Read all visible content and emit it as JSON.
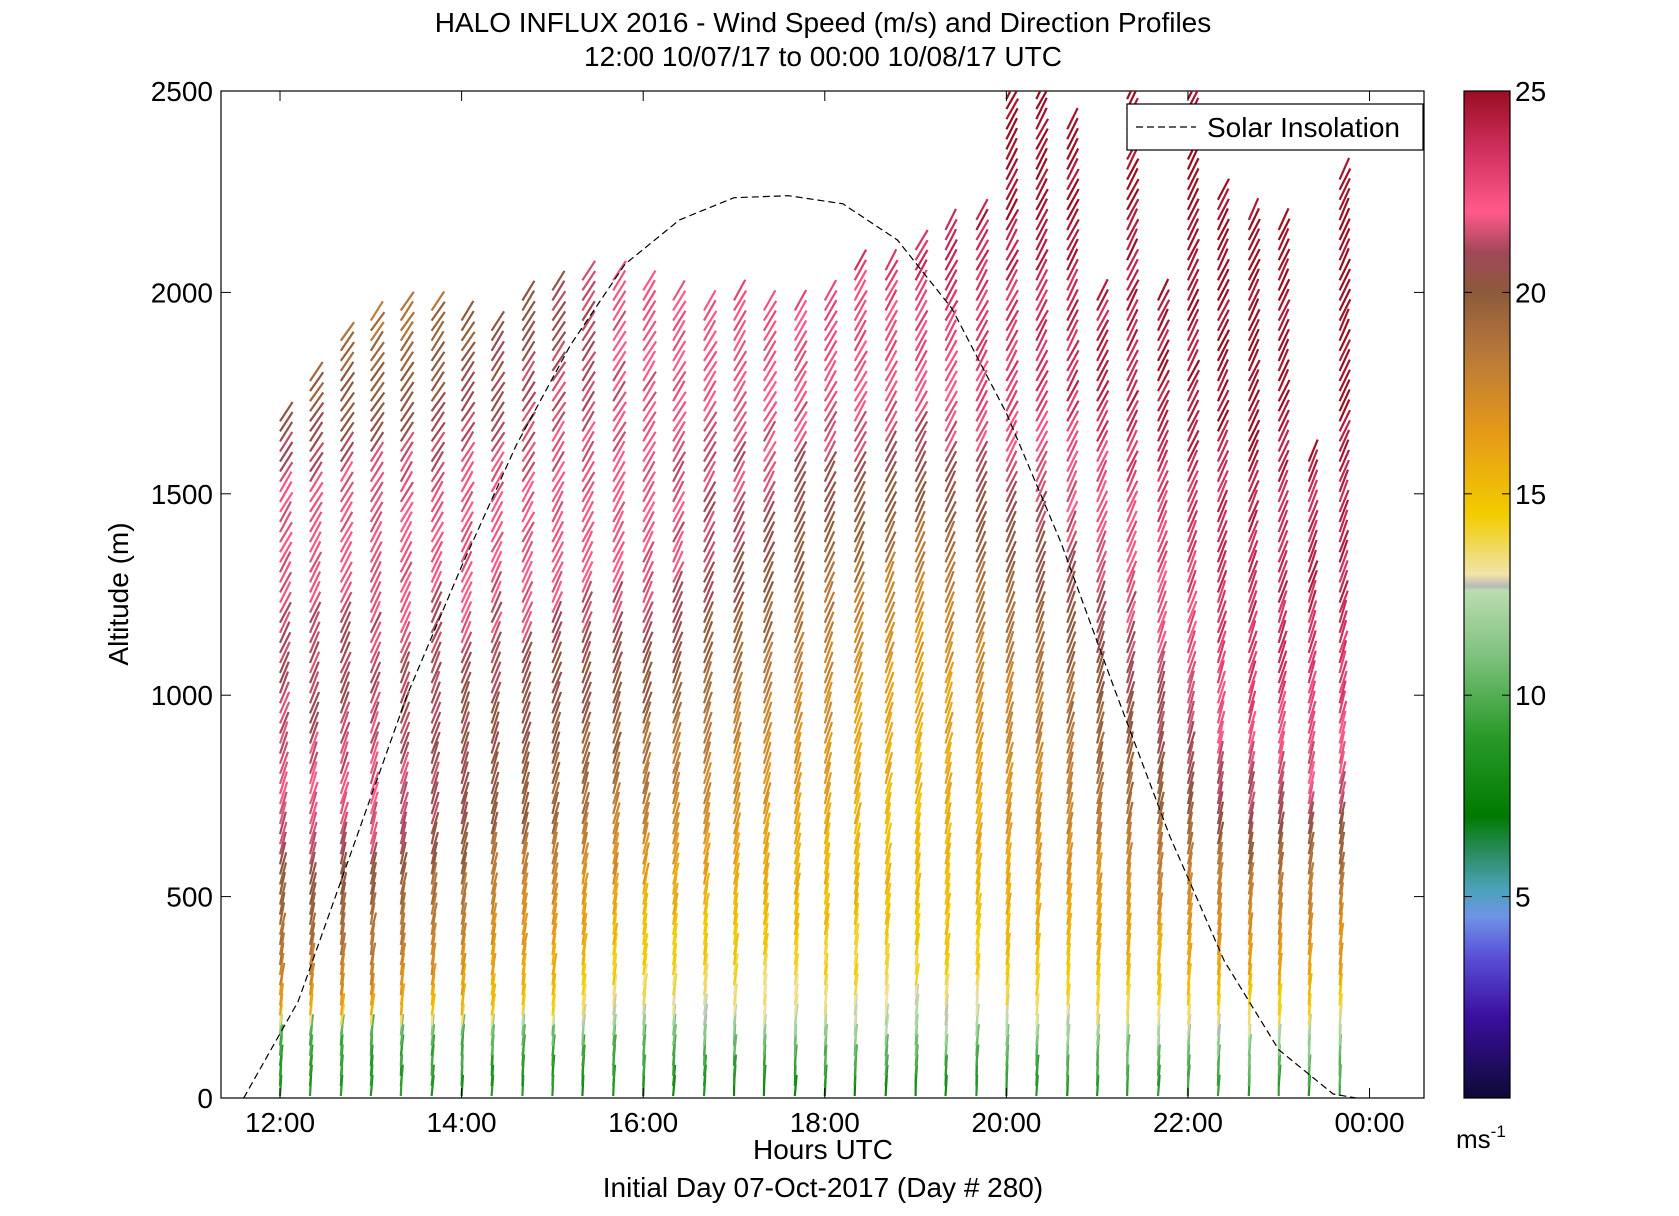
{
  "figure": {
    "title_line1": "HALO INFLUX 2016 - Wind Speed (m/s) and Direction Profiles",
    "title_line2": "12:00 10/07/17 to 00:00 10/08/17  UTC",
    "xlabel": "Hours UTC",
    "footer": "Initial Day 07-Oct-2017 (Day # 280)",
    "ylabel": "Altitude (m)",
    "colorbar_unit": "ms",
    "colorbar_unit_exp": "-1"
  },
  "chart_data": {
    "type": "scatter",
    "title": "HALO INFLUX 2016 - Wind Speed (m/s) and Direction Profiles",
    "subtitle": "12:00 10/07/17 to 00:00 10/08/17  UTC",
    "xlabel": "Hours UTC",
    "ylabel": "Altitude (m)",
    "xlim": [
      11.35,
      24.6
    ],
    "ylim": [
      0,
      2500
    ],
    "x_ticks": [
      12,
      14,
      16,
      18,
      20,
      22,
      24
    ],
    "x_tick_labels": [
      "12:00",
      "14:00",
      "16:00",
      "18:00",
      "20:00",
      "22:00",
      "00:00"
    ],
    "y_ticks": [
      0,
      500,
      1000,
      1500,
      2000,
      2500
    ],
    "y_tick_labels": [
      "0",
      "500",
      "1000",
      "1500",
      "2000",
      "2500"
    ],
    "colorbar": {
      "label": "ms-1",
      "range": [
        0,
        25
      ],
      "ticks": [
        5,
        10,
        15,
        20,
        25
      ],
      "tick_labels": [
        "5",
        "10",
        "15",
        "20",
        "25"
      ],
      "colormap": [
        [
          0,
          "#0d0a35"
        ],
        [
          2,
          "#3a0e9e"
        ],
        [
          3.5,
          "#5a4fd8"
        ],
        [
          4.5,
          "#6f93e6"
        ],
        [
          5.2,
          "#4aa3b8"
        ],
        [
          6,
          "#2f8d6a"
        ],
        [
          7,
          "#007a00"
        ],
        [
          9,
          "#2a9a2a"
        ],
        [
          11,
          "#7fc27f"
        ],
        [
          12.6,
          "#bcdcb0"
        ],
        [
          12.7,
          "#b8b8b8"
        ],
        [
          13,
          "#f0e4a8"
        ],
        [
          14.5,
          "#f2cc00"
        ],
        [
          16.5,
          "#e69a18"
        ],
        [
          18.5,
          "#b8783a"
        ],
        [
          20,
          "#8c5a3c"
        ],
        [
          21,
          "#a04858"
        ],
        [
          22,
          "#ff5a8a"
        ],
        [
          23.5,
          "#d23060"
        ],
        [
          25,
          "#9a0e22"
        ]
      ]
    },
    "legend": {
      "entries": [
        "Solar Insolation"
      ],
      "position": "top-right"
    },
    "grid": false,
    "solar_insolation": {
      "style": "dashed",
      "x": [
        11.6,
        12.2,
        12.8,
        13.4,
        14.0,
        14.6,
        15.2,
        15.8,
        16.4,
        17.0,
        17.6,
        18.2,
        18.8,
        19.4,
        20.0,
        20.6,
        21.2,
        21.8,
        22.4,
        23.0,
        23.6,
        23.85
      ],
      "y": [
        0,
        240,
        620,
        1000,
        1320,
        1620,
        1870,
        2070,
        2180,
        2235,
        2240,
        2220,
        2130,
        1960,
        1700,
        1380,
        1010,
        650,
        340,
        120,
        10,
        0
      ]
    },
    "wind_barbs": {
      "x_hours": [
        12.0,
        12.33,
        12.67,
        13.0,
        13.33,
        13.67,
        14.0,
        14.33,
        14.67,
        15.0,
        15.33,
        15.67,
        16.0,
        16.33,
        16.67,
        17.0,
        17.33,
        17.67,
        18.0,
        18.33,
        18.67,
        19.0,
        19.33,
        19.67,
        20.0,
        20.33,
        20.67,
        21.0,
        21.33,
        21.67,
        22.0,
        22.33,
        22.67,
        23.0,
        23.33,
        23.67
      ],
      "max_altitude_m": [
        1700,
        1790,
        1880,
        1930,
        1960,
        1960,
        1950,
        1920,
        2000,
        2010,
        2030,
        2050,
        2020,
        2000,
        1970,
        1980,
        1960,
        1960,
        1980,
        2060,
        2070,
        2120,
        2170,
        2180,
        2500,
        2500,
        2420,
        1980,
        2480,
        2000,
        2480,
        2250,
        2200,
        2160,
        1580,
        2280
      ],
      "profile_speed_ms": {
        "altitude_m": [
          0,
          50,
          100,
          150,
          200,
          300,
          500,
          700,
          1000,
          1300,
          1500,
          1700,
          2000,
          2300,
          2500
        ],
        "early_12_to_14": [
          9,
          9,
          9.5,
          10,
          16,
          18,
          20,
          22,
          21,
          22,
          22,
          20,
          18,
          18,
          18
        ],
        "midday_15_to_17": [
          8,
          9,
          10,
          11,
          13,
          14,
          16,
          18,
          20,
          22,
          22,
          22,
          22,
          22,
          22
        ],
        "afternoon_18_to_20": [
          8,
          9,
          10,
          12,
          13,
          14,
          15,
          15,
          16,
          18,
          20,
          22,
          23,
          25,
          25
        ],
        "evening_21_to_24": [
          9,
          10,
          11,
          12.5,
          14,
          16,
          18,
          21,
          23,
          24,
          24,
          25,
          25,
          25,
          25
        ]
      },
      "direction_trend": "mostly south-westerly near the surface veering to westerly aloft"
    }
  }
}
